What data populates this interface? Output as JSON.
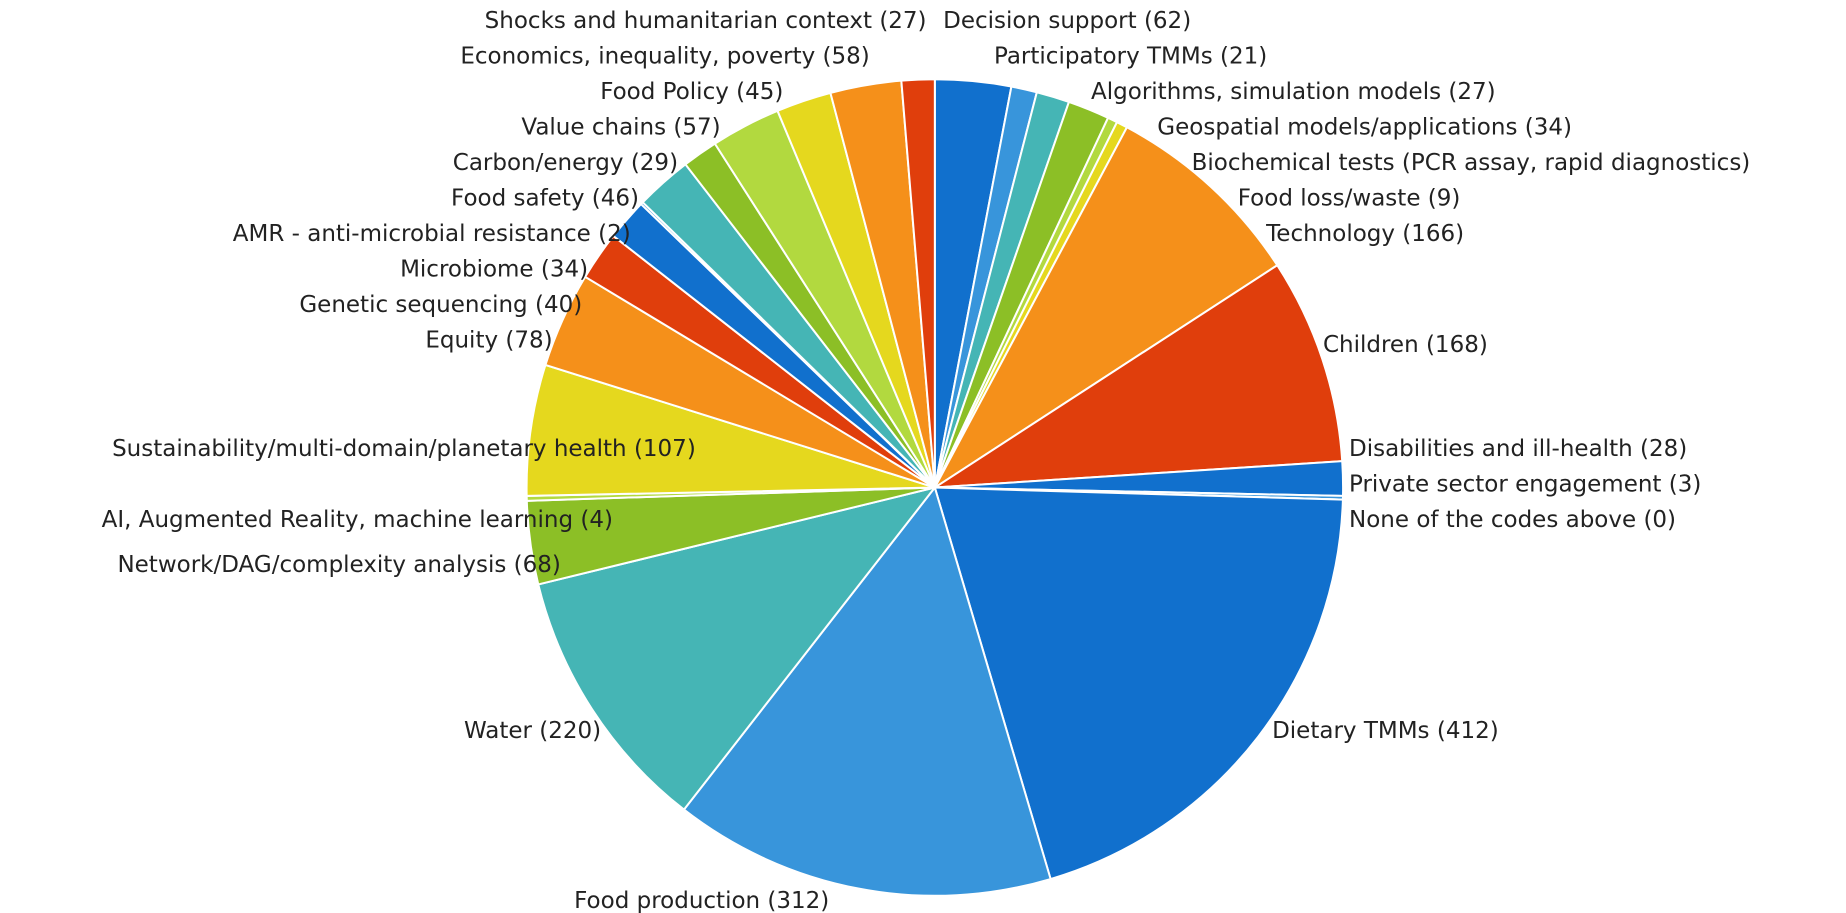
{
  "chart_data": {
    "type": "pie",
    "categories": [
      "Decision support (62)",
      "Participatory TMMs (21)",
      "Algorithms, simulation models (27)",
      "Geospatial models/applications (34)",
      "Biochemical tests (PCR assay, rapid diagnostics)",
      "Food loss/waste (9)",
      "Technology (166)",
      "Children (168)",
      "Disabilities and ill-health (28)",
      "Private sector engagement (3)",
      "None of the codes above (0)",
      "Dietary TMMs (412)",
      "Food production (312)",
      "Water  (220)",
      "Network/DAG/complexity analysis (68)",
      "AI, Augmented Reality, machine learning (4)",
      "Sustainability/multi-domain/planetary health (107)",
      "Equity (78)",
      "Genetic sequencing  (40)",
      "Microbiome (34)",
      "AMR - anti-microbial resistance (2)",
      "Food safety (46)",
      "Carbon/energy (29)",
      "Value chains (57)",
      "Food Policy (45)",
      "Economics, inequality, poverty (58)",
      "Shocks and humanitarian context (27)"
    ],
    "values": [
      62,
      21,
      27,
      34,
      8,
      9,
      166,
      168,
      28,
      3,
      0,
      412,
      312,
      220,
      68,
      4,
      107,
      78,
      40,
      34,
      2,
      46,
      29,
      57,
      45,
      58,
      27
    ],
    "colors": [
      "#1170cd",
      "#3895db",
      "#45b5b5",
      "#8cbf26",
      "#b2d93f",
      "#e5d81e",
      "#f5901a",
      "#e03e0c",
      "#1170cd",
      "#3895db",
      "#45b5b5",
      "#1170cd",
      "#3895db",
      "#45b5b5",
      "#8cbf26",
      "#b2d93f",
      "#e5d81e",
      "#f5901a",
      "#e03e0c",
      "#1170cd",
      "#3895db",
      "#45b5b5",
      "#8cbf26",
      "#b2d93f",
      "#e5d81e",
      "#f5901a",
      "#e03e0c"
    ]
  }
}
